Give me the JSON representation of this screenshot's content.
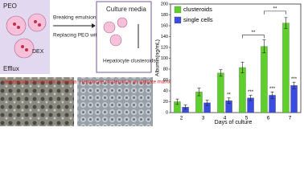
{
  "diagram": {
    "phase_a": "PEO",
    "phase_b": "DEX",
    "efflux": "Efflux",
    "step_1": "Breaking emulsion",
    "step_2": "Replacing PEO with gel",
    "box_title": "Culture media",
    "box_label": "Hepatocyte clusteroids",
    "micrograph_1": "Hepatocyte clusteroids in media",
    "micrograph_2": "Hepatocyte clusteroid in an alginate matrix"
  },
  "chart_data": {
    "type": "bar",
    "x_label": "Days of culture",
    "y_label": "Albumin(ng/mL)",
    "categories": [
      "2",
      "3",
      "4",
      "5",
      "6",
      "7"
    ],
    "series": [
      {
        "name": "clusteroids",
        "color": "#5fcf2c",
        "values": [
          20,
          38,
          73,
          83,
          122,
          165
        ],
        "errors": [
          5,
          7,
          6,
          10,
          12,
          10
        ]
      },
      {
        "name": "single cells",
        "color": "#3a4de0",
        "values": [
          10,
          18,
          22,
          27,
          32,
          50
        ],
        "errors": [
          4,
          5,
          5,
          5,
          6,
          6
        ]
      }
    ],
    "annotations": [
      {
        "text": "**",
        "category": "4",
        "series": "single cells"
      },
      {
        "text": "***",
        "category": "5",
        "series": "single cells"
      },
      {
        "text": "***",
        "category": "6",
        "series": "single cells"
      },
      {
        "text": "***",
        "category": "7",
        "series": "single cells"
      }
    ],
    "brackets": [
      {
        "text": "**",
        "from": "5",
        "to": "6"
      },
      {
        "text": "**",
        "from": "6",
        "to": "7"
      }
    ],
    "ylim": [
      0,
      200
    ],
    "yticks": [
      0,
      20,
      40,
      60,
      80,
      100,
      120,
      140,
      160,
      180,
      200
    ],
    "legend": "upper left"
  }
}
